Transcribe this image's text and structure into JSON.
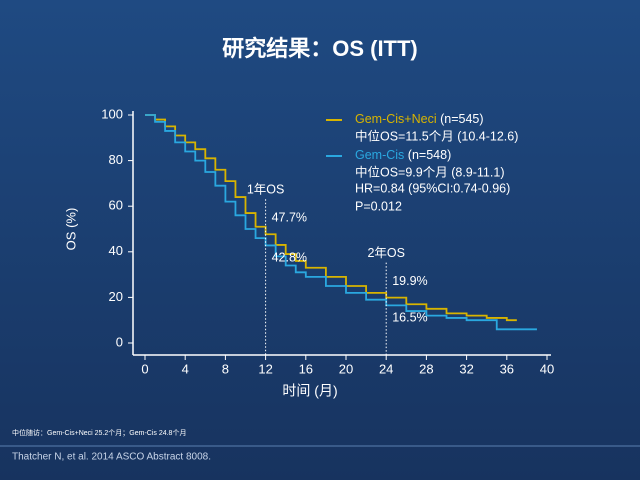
{
  "chart_data": {
    "type": "line",
    "step": true,
    "title": "研究结果：OS (ITT)",
    "x_label": "时间 (月)",
    "y_label": "OS (%)",
    "xlim": [
      0,
      40
    ],
    "ylim": [
      0,
      100
    ],
    "xticks": [
      0,
      4,
      8,
      12,
      16,
      20,
      24,
      28,
      32,
      36,
      40
    ],
    "yticks": [
      0,
      20,
      40,
      60,
      80,
      100
    ],
    "series": [
      {
        "name": "Gem-Cis+Neci",
        "n_label": "(n=545)",
        "median_label": "中位OS=11.5个月 (10.4-12.6)",
        "color": "#d8b400",
        "x": [
          0,
          1,
          2,
          3,
          4,
          5,
          6,
          7,
          8,
          9,
          10,
          11,
          12,
          13,
          14,
          15,
          16,
          18,
          20,
          22,
          24,
          26,
          28,
          30,
          32,
          34,
          36,
          37
        ],
        "values": [
          100,
          98,
          95,
          91,
          88,
          85,
          81,
          76,
          71,
          64,
          57,
          51,
          47.7,
          43,
          39,
          36,
          33,
          29,
          25,
          22,
          19.9,
          17,
          15,
          13,
          12,
          11,
          10,
          10
        ]
      },
      {
        "name": "Gem-Cis",
        "n_label": "(n=548)",
        "median_label": "中位OS=9.9个月 (8.9-11.1)",
        "color": "#2aa8e0",
        "x": [
          0,
          1,
          2,
          3,
          4,
          5,
          6,
          7,
          8,
          9,
          10,
          11,
          12,
          13,
          14,
          15,
          16,
          18,
          20,
          22,
          24,
          26,
          28,
          30,
          32,
          34,
          35,
          37,
          39
        ],
        "values": [
          100,
          97,
          93,
          88,
          84,
          80,
          75,
          69,
          62,
          56,
          50,
          46,
          42.8,
          38,
          34,
          31,
          29,
          25,
          22,
          19,
          16.5,
          14,
          12,
          11,
          10,
          10,
          6,
          6,
          6
        ]
      }
    ],
    "stats": [
      "HR=0.84 (95%CI:0.74-0.96)",
      "P=0.012"
    ],
    "landmarks": [
      {
        "x": 12,
        "label": "1年OS",
        "values": [
          47.7,
          42.8
        ],
        "value_labels": [
          "47.7%",
          "42.8%"
        ]
      },
      {
        "x": 24,
        "label": "2年OS",
        "values": [
          19.9,
          16.5
        ],
        "value_labels": [
          "19.9%",
          "16.5%"
        ]
      }
    ],
    "footnote": "中位随访：Gem-Cis+Neci 25.2个月；Gem-Cis 24.8个月",
    "citation": "Thatcher N, et al. 2014 ASCO Abstract 8008."
  }
}
